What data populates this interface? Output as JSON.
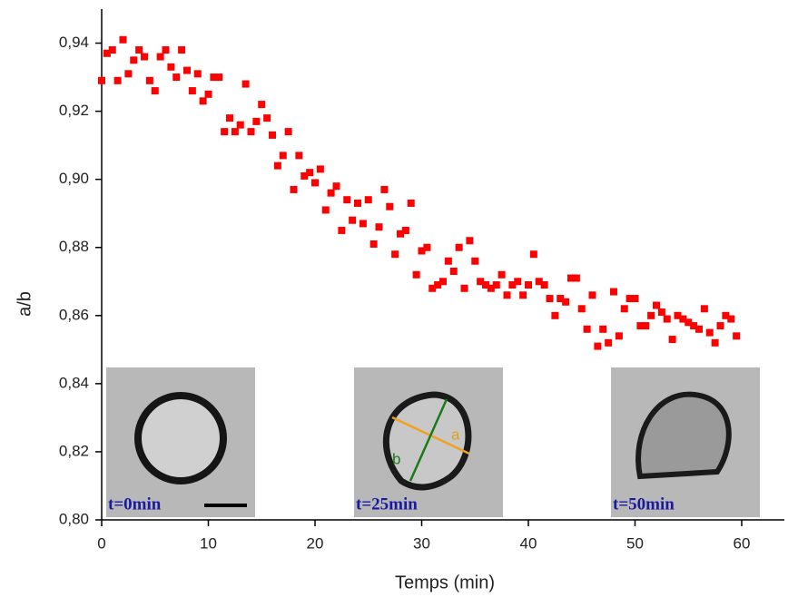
{
  "chart_data": {
    "type": "scatter",
    "xlabel": "Temps (min)",
    "ylabel": "a/b",
    "xlim": [
      0,
      64
    ],
    "xticks": [
      0,
      10,
      20,
      30,
      40,
      50,
      60
    ],
    "ylim": [
      0.8,
      0.95
    ],
    "yticks": [
      {
        "value": 0.8,
        "label": "0,80"
      },
      {
        "value": 0.82,
        "label": "0,82"
      },
      {
        "value": 0.84,
        "label": "0,84"
      },
      {
        "value": 0.86,
        "label": "0,86"
      },
      {
        "value": 0.88,
        "label": "0,88"
      },
      {
        "value": 0.9,
        "label": "0,90"
      },
      {
        "value": 0.92,
        "label": "0,92"
      },
      {
        "value": 0.94,
        "label": "0,94"
      }
    ],
    "insets": [
      {
        "label": "t=0min"
      },
      {
        "label": "t=25min"
      },
      {
        "label": "t=50min"
      }
    ],
    "inset_axes": [
      "a",
      "b"
    ],
    "series": [
      {
        "color": "#ff0000",
        "x": [
          0,
          0.5,
          1,
          1.5,
          2,
          2.5,
          3,
          3.5,
          4,
          4.5,
          5,
          5.5,
          6,
          6.5,
          7,
          7.5,
          8,
          8.5,
          9,
          9.5,
          10,
          10.5,
          11,
          11.5,
          12,
          12.5,
          13,
          13.5,
          14,
          14.5,
          15,
          15.5,
          16,
          16.5,
          17,
          17.5,
          18,
          18.5,
          19,
          19.5,
          20,
          20.5,
          21,
          21.5,
          22,
          22.5,
          23,
          23.5,
          24,
          24.5,
          25,
          25.5,
          26,
          26.5,
          27,
          27.5,
          28,
          28.5,
          29,
          29.5,
          30,
          30.5,
          31,
          31.5,
          32,
          32.5,
          33,
          33.5,
          34,
          34.5,
          35,
          35.5,
          36,
          36.5,
          37,
          37.5,
          38,
          38.5,
          39,
          39.5,
          40,
          40.5,
          41,
          41.5,
          42,
          42.5,
          43,
          43.5,
          44,
          44.5,
          45,
          45.5,
          46,
          46.5,
          47,
          47.5,
          48,
          48.5,
          49,
          49.5,
          50,
          50.5,
          51,
          51.5,
          52,
          52.5,
          53,
          53.5,
          54,
          54.5,
          55,
          55.5,
          56,
          56.5,
          57,
          57.5,
          58,
          58.5,
          59,
          59.5
        ],
        "values": [
          0.929,
          0.937,
          0.938,
          0.929,
          0.941,
          0.931,
          0.935,
          0.938,
          0.936,
          0.929,
          0.926,
          0.936,
          0.938,
          0.933,
          0.93,
          0.938,
          0.932,
          0.926,
          0.931,
          0.923,
          0.925,
          0.93,
          0.93,
          0.914,
          0.918,
          0.914,
          0.916,
          0.928,
          0.914,
          0.917,
          0.922,
          0.918,
          0.913,
          0.904,
          0.907,
          0.914,
          0.897,
          0.907,
          0.901,
          0.902,
          0.899,
          0.903,
          0.891,
          0.896,
          0.898,
          0.885,
          0.894,
          0.888,
          0.893,
          0.887,
          0.894,
          0.881,
          0.886,
          0.897,
          0.892,
          0.878,
          0.884,
          0.885,
          0.893,
          0.872,
          0.879,
          0.88,
          0.868,
          0.869,
          0.87,
          0.876,
          0.873,
          0.88,
          0.868,
          0.882,
          0.876,
          0.87,
          0.869,
          0.868,
          0.869,
          0.872,
          0.866,
          0.869,
          0.87,
          0.866,
          0.869,
          0.878,
          0.87,
          0.869,
          0.865,
          0.86,
          0.865,
          0.864,
          0.871,
          0.871,
          0.862,
          0.856,
          0.866,
          0.851,
          0.856,
          0.852,
          0.867,
          0.854,
          0.862,
          0.865,
          0.865,
          0.857,
          0.857,
          0.86,
          0.863,
          0.861,
          0.859,
          0.853,
          0.86,
          0.859,
          0.858,
          0.857,
          0.856,
          0.862,
          0.855,
          0.852,
          0.857,
          0.86,
          0.859,
          0.854
        ]
      }
    ]
  }
}
